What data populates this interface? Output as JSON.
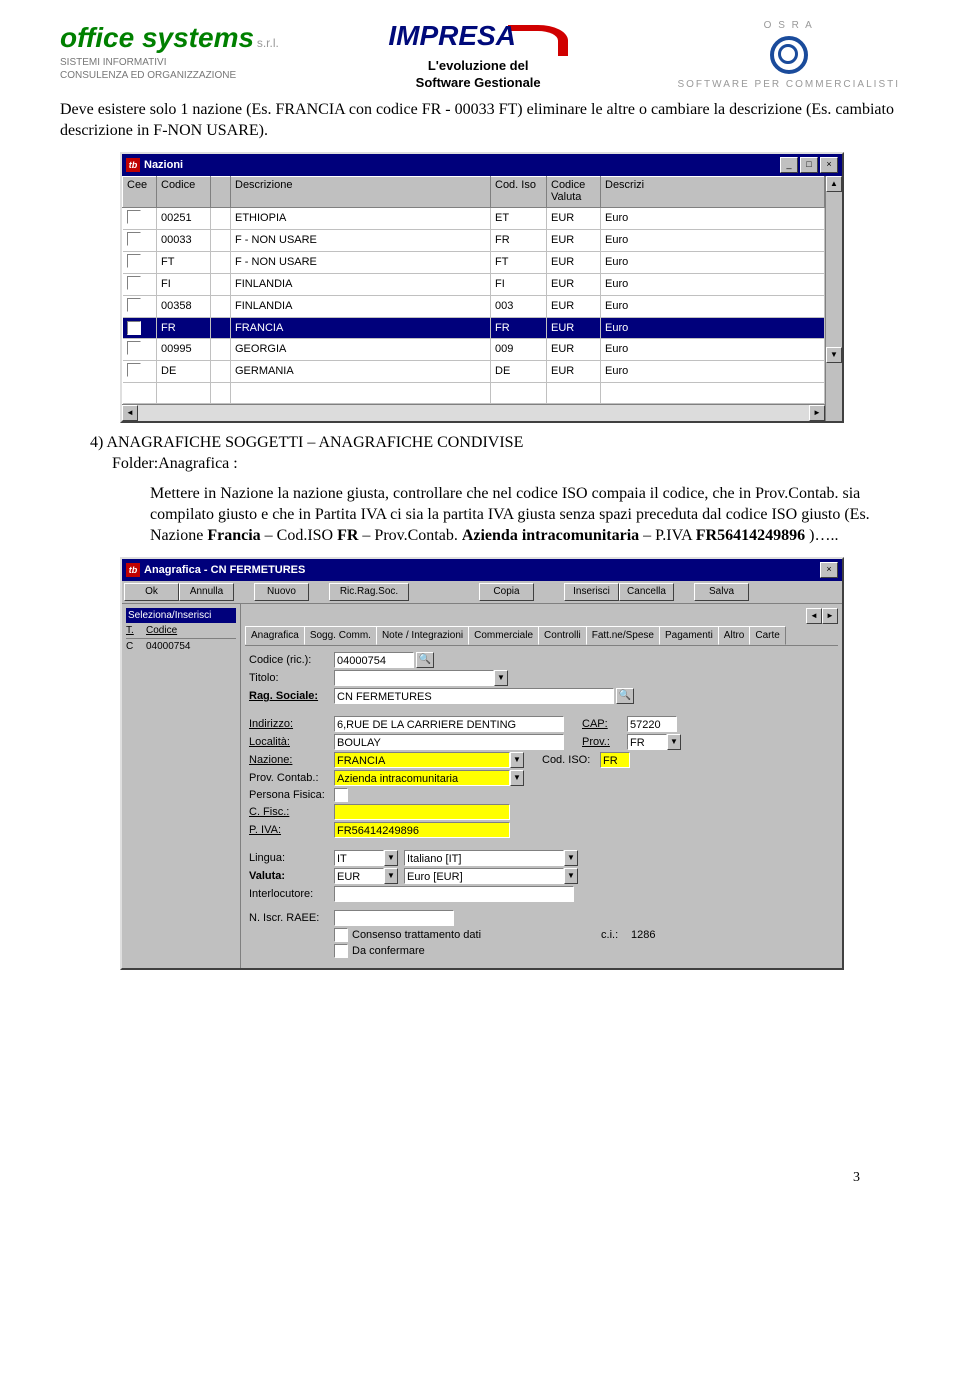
{
  "header": {
    "left_brand": "office systems",
    "left_suffix": "s.r.l.",
    "left_line1": "SISTEMI INFORMATIVI",
    "left_line2": "CONSULENZA ED ORGANIZZAZIONE",
    "center_brand": "IMPRESA",
    "center_sub1": "L'evoluzione del",
    "center_sub2": "Software Gestionale",
    "right_brand": "O S R A",
    "right_sub": "SOFTWARE PER COMMERCIALISTI"
  },
  "text": {
    "p1": "Deve esistere solo 1 nazione (Es. FRANCIA con codice FR - 00033 FT) eliminare le altre o cambiare la descrizione (Es. cambiato descrizione in F-NON USARE).",
    "sec4_title": "4)  ANAGRAFICHE SOGGETTI – ANAGRAFICHE CONDIVISE",
    "sec4_folder": "Folder:Anagrafica :",
    "sec4_body1": "Mettere in Nazione la nazione giusta, controllare che nel codice ISO compaia il codice, che in Prov.Contab. sia compilato giusto e che in Partita IVA ci sia la partita IVA giusta senza spazi preceduta dal codice ISO giusto (Es. Nazione ",
    "sec4_b1": "Francia",
    "sec4_body2": " – Cod.ISO ",
    "sec4_b2": "FR",
    "sec4_body3": " – Prov.Contab. ",
    "sec4_b3": "Azienda intracomunitaria",
    "sec4_body4": " – P.IVA ",
    "sec4_b4": "FR56414249896",
    "sec4_body5": " )….."
  },
  "nazioni": {
    "title": "Nazioni",
    "headers": [
      "Cee",
      "Codice",
      "",
      "Descrizione",
      "Cod. Iso",
      "Codice Valuta",
      "Descrizi"
    ],
    "rows": [
      {
        "cee": false,
        "codice": "00251",
        "desc": "ETHIOPIA",
        "iso": "ET",
        "val": "EUR",
        "valdesc": "Euro",
        "sel": false
      },
      {
        "cee": false,
        "codice": "00033",
        "desc": "F - NON USARE",
        "iso": "FR",
        "val": "EUR",
        "valdesc": "Euro",
        "sel": false
      },
      {
        "cee": false,
        "codice": "FT",
        "desc": "F - NON USARE",
        "iso": "FT",
        "val": "EUR",
        "valdesc": "Euro",
        "sel": false
      },
      {
        "cee": false,
        "codice": "FI",
        "desc": "FINLANDIA",
        "iso": "FI",
        "val": "EUR",
        "valdesc": "Euro",
        "sel": false
      },
      {
        "cee": false,
        "codice": "00358",
        "desc": "FINLANDIA",
        "iso": "003",
        "val": "EUR",
        "valdesc": "Euro",
        "sel": false
      },
      {
        "cee": true,
        "codice": "FR",
        "desc": "FRANCIA",
        "iso": "FR",
        "val": "EUR",
        "valdesc": "Euro",
        "sel": true
      },
      {
        "cee": false,
        "codice": "00995",
        "desc": "GEORGIA",
        "iso": "009",
        "val": "EUR",
        "valdesc": "Euro",
        "sel": false
      },
      {
        "cee": false,
        "codice": "DE",
        "desc": "GERMANIA",
        "iso": "DE",
        "val": "EUR",
        "valdesc": "Euro",
        "sel": false
      }
    ]
  },
  "anagrafica": {
    "title": "Anagrafica - CN FERMETURES",
    "buttons": [
      "Ok",
      "Annulla",
      "Nuovo",
      "Ric.Rag.Soc.",
      "Copia",
      "Inserisci",
      "Cancella",
      "Salva"
    ],
    "sidebar_label": "Seleziona/Inserisci",
    "sidebar_h1": "T.",
    "sidebar_h2": "Codice",
    "sidebar_t": "C",
    "sidebar_code": "04000754",
    "tabs": [
      "Anagrafica",
      "Sogg. Comm.",
      "Note / Integrazioni",
      "Commerciale",
      "Controlli",
      "Fatt.ne/Spese",
      "Pagamenti",
      "Altro",
      "Carte"
    ],
    "codice_ric_label": "Codice (ric.):",
    "codice_ric": "04000754",
    "titolo_label": "Titolo:",
    "titolo": "",
    "rag_label": "Rag. Sociale:",
    "rag": "CN FERMETURES",
    "indirizzo_label": "Indirizzo:",
    "indirizzo": "6,RUE DE LA CARRIERE DENTING",
    "cap_label": "CAP:",
    "cap": "57220",
    "localita_label": "Località:",
    "localita": "BOULAY",
    "prov_label": "Prov.:",
    "prov": "FR",
    "nazione_label": "Nazione:",
    "nazione": "FRANCIA",
    "codiso_label": "Cod. ISO:",
    "codiso": "FR",
    "provcontab_label": "Prov. Contab.:",
    "provcontab": "Azienda intracomunitaria",
    "pfisica_label": "Persona Fisica:",
    "cfisc_label": "C. Fisc.:",
    "cfisc": "",
    "piva_label": "P. IVA:",
    "piva": "FR56414249896",
    "lingua_label": "Lingua:",
    "lingua": "IT",
    "lingua_desc": "Italiano [IT]",
    "valuta_label": "Valuta:",
    "valuta": "EUR",
    "valuta_desc": "Euro [EUR]",
    "interloc_label": "Interlocutore:",
    "raee_label": "N. Iscr. RAEE:",
    "consenso": "Consenso trattamento dati",
    "daconf": "Da confermare",
    "ci_label": "c.i.:",
    "ci": "1286"
  },
  "page_num": "3"
}
